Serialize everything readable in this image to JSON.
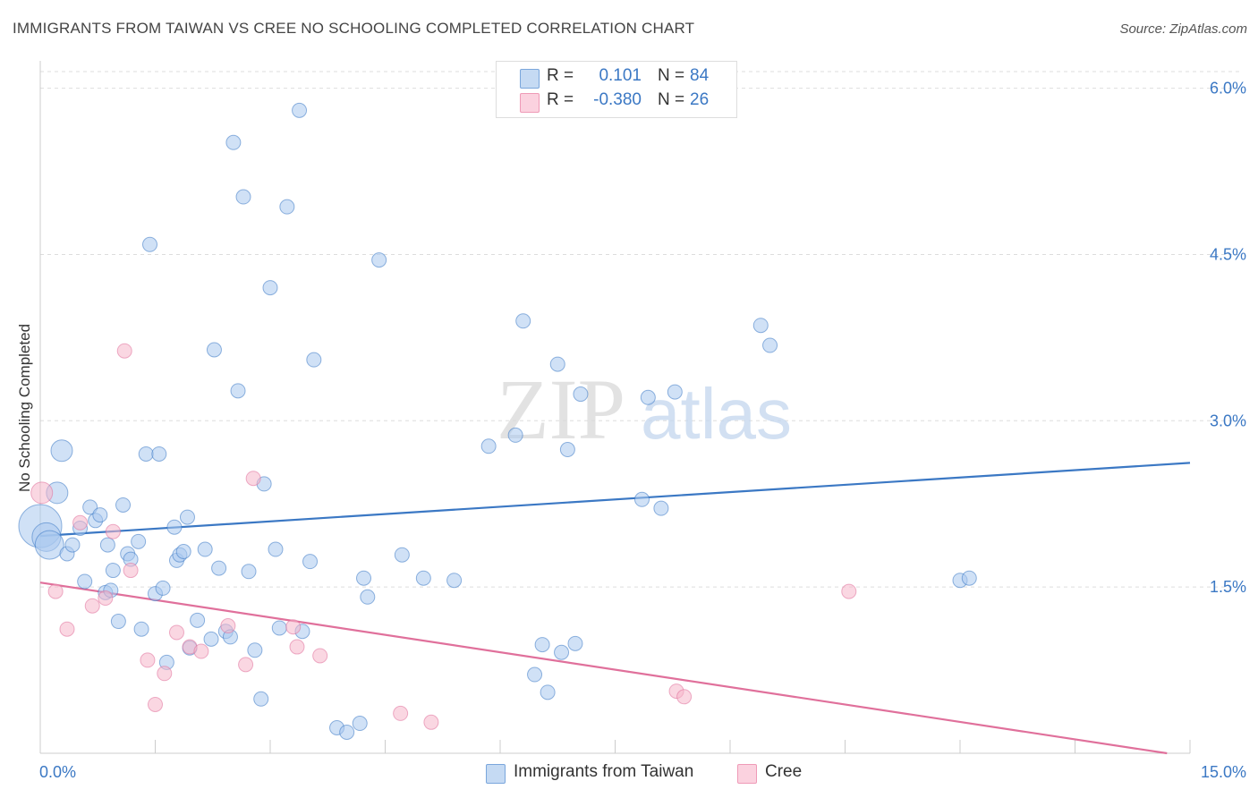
{
  "title": "IMMIGRANTS FROM TAIWAN VS CREE NO SCHOOLING COMPLETED CORRELATION CHART",
  "source": "Source: ZipAtlas.com",
  "watermark": {
    "zip": "ZIP",
    "atlas": "atlas"
  },
  "colors": {
    "blue": "#3b78c4",
    "blue_fill": "#a9c8ee",
    "pink": "#e0709b",
    "pink_fill": "#f6b6cb",
    "grid": "#dddddd"
  },
  "legend_top": {
    "rows": [
      {
        "r_label": "R =",
        "r_value": "0.101",
        "n_label": "N =",
        "n_value": "84"
      },
      {
        "r_label": "R =",
        "r_value": "-0.380",
        "n_label": "N =",
        "n_value": "26"
      }
    ]
  },
  "legend_bottom": {
    "items": [
      "Immigrants from Taiwan",
      "Cree"
    ]
  },
  "chart_data": {
    "type": "scatter",
    "title": "IMMIGRANTS FROM TAIWAN VS CREE NO SCHOOLING COMPLETED CORRELATION CHART",
    "xlabel": "",
    "ylabel": "No Schooling Completed",
    "xlim": [
      0,
      15
    ],
    "ylim": [
      0,
      6.15
    ],
    "x_tick_labels": [
      "0.0%",
      "15.0%"
    ],
    "y_ticks": [
      1.5,
      3.0,
      4.5,
      6.0
    ],
    "y_tick_labels": [
      "1.5%",
      "3.0%",
      "4.5%",
      "6.0%"
    ],
    "grid": true,
    "series": [
      {
        "name": "Immigrants from Taiwan",
        "color": "#3b78c4",
        "fill": "#a9c8ee",
        "trend": {
          "x": [
            0,
            15
          ],
          "y": [
            1.96,
            2.62
          ]
        },
        "points": [
          [
            0.0,
            2.05,
            3
          ],
          [
            0.08,
            1.95,
            2
          ],
          [
            0.12,
            1.88,
            2
          ],
          [
            0.22,
            2.35,
            1.5
          ],
          [
            0.28,
            2.73,
            1.5
          ],
          [
            0.35,
            1.8,
            1
          ],
          [
            0.42,
            1.88,
            1
          ],
          [
            0.52,
            2.03,
            1
          ],
          [
            0.58,
            1.55,
            1
          ],
          [
            0.65,
            2.22,
            1
          ],
          [
            0.72,
            2.1,
            1
          ],
          [
            0.78,
            2.15,
            1
          ],
          [
            0.85,
            1.45,
            1
          ],
          [
            0.88,
            1.88,
            1
          ],
          [
            0.92,
            1.47,
            1
          ],
          [
            0.95,
            1.65,
            1
          ],
          [
            1.02,
            1.19,
            1
          ],
          [
            1.08,
            2.24,
            1
          ],
          [
            1.14,
            1.8,
            1
          ],
          [
            1.18,
            1.75,
            1
          ],
          [
            1.28,
            1.91,
            1
          ],
          [
            1.32,
            1.12,
            1
          ],
          [
            1.38,
            2.7,
            1
          ],
          [
            1.43,
            4.59,
            1
          ],
          [
            1.5,
            1.44,
            1
          ],
          [
            1.55,
            2.7,
            1
          ],
          [
            1.6,
            1.49,
            1
          ],
          [
            1.65,
            0.82,
            1
          ],
          [
            1.75,
            2.04,
            1
          ],
          [
            1.78,
            1.74,
            1
          ],
          [
            1.82,
            1.79,
            1
          ],
          [
            1.87,
            1.82,
            1
          ],
          [
            1.92,
            2.13,
            1
          ],
          [
            1.95,
            0.95,
            1
          ],
          [
            2.05,
            1.2,
            1
          ],
          [
            2.15,
            1.84,
            1
          ],
          [
            2.23,
            1.03,
            1
          ],
          [
            2.27,
            3.64,
            1
          ],
          [
            2.33,
            1.67,
            1
          ],
          [
            2.42,
            1.1,
            1
          ],
          [
            2.48,
            1.05,
            1
          ],
          [
            2.52,
            5.51,
            1
          ],
          [
            2.58,
            3.27,
            1
          ],
          [
            2.65,
            5.02,
            1
          ],
          [
            2.72,
            1.64,
            1
          ],
          [
            2.8,
            0.93,
            1
          ],
          [
            2.88,
            0.49,
            1
          ],
          [
            2.92,
            2.43,
            1
          ],
          [
            3.0,
            4.2,
            1
          ],
          [
            3.07,
            1.84,
            1
          ],
          [
            3.12,
            1.13,
            1
          ],
          [
            3.22,
            4.93,
            1
          ],
          [
            3.38,
            5.8,
            1
          ],
          [
            3.42,
            1.1,
            1
          ],
          [
            3.52,
            1.73,
            1
          ],
          [
            3.57,
            3.55,
            1
          ],
          [
            3.87,
            0.23,
            1
          ],
          [
            4.0,
            0.19,
            1
          ],
          [
            4.17,
            0.27,
            1
          ],
          [
            4.22,
            1.58,
            1
          ],
          [
            4.27,
            1.41,
            1
          ],
          [
            4.42,
            4.45,
            1
          ],
          [
            4.72,
            1.79,
            1
          ],
          [
            5.0,
            1.58,
            1
          ],
          [
            5.4,
            1.56,
            1
          ],
          [
            5.85,
            2.77,
            1
          ],
          [
            6.2,
            2.87,
            1
          ],
          [
            6.3,
            3.9,
            1
          ],
          [
            6.45,
            0.71,
            1
          ],
          [
            6.55,
            0.98,
            1
          ],
          [
            6.62,
            0.55,
            1
          ],
          [
            6.75,
            3.51,
            1
          ],
          [
            6.8,
            0.91,
            1
          ],
          [
            6.88,
            2.74,
            1
          ],
          [
            6.98,
            0.99,
            1
          ],
          [
            7.05,
            3.24,
            1
          ],
          [
            7.85,
            2.29,
            1
          ],
          [
            7.93,
            3.21,
            1
          ],
          [
            8.1,
            2.21,
            1
          ],
          [
            8.28,
            3.26,
            1
          ],
          [
            9.4,
            3.86,
            1
          ],
          [
            9.52,
            3.68,
            1
          ],
          [
            12.0,
            1.56,
            1
          ],
          [
            12.12,
            1.58,
            1
          ]
        ]
      },
      {
        "name": "Cree",
        "color": "#e0709b",
        "fill": "#f6b6cb",
        "trend": {
          "x": [
            0,
            14.7
          ],
          "y": [
            1.54,
            0.0
          ]
        },
        "points": [
          [
            0.02,
            2.35,
            1.5
          ],
          [
            0.2,
            1.46,
            1
          ],
          [
            0.35,
            1.12,
            1
          ],
          [
            0.52,
            2.08,
            1
          ],
          [
            0.68,
            1.33,
            1
          ],
          [
            0.85,
            1.4,
            1
          ],
          [
            0.95,
            2.0,
            1
          ],
          [
            1.1,
            3.63,
            1
          ],
          [
            1.18,
            1.65,
            1
          ],
          [
            1.4,
            0.84,
            1
          ],
          [
            1.5,
            0.44,
            1
          ],
          [
            1.62,
            0.72,
            1
          ],
          [
            1.78,
            1.09,
            1
          ],
          [
            1.95,
            0.96,
            1
          ],
          [
            2.1,
            0.92,
            1
          ],
          [
            2.45,
            1.15,
            1
          ],
          [
            2.68,
            0.8,
            1
          ],
          [
            2.78,
            2.48,
            1
          ],
          [
            3.3,
            1.14,
            1
          ],
          [
            3.35,
            0.96,
            1
          ],
          [
            3.65,
            0.88,
            1
          ],
          [
            4.7,
            0.36,
            1
          ],
          [
            5.1,
            0.28,
            1
          ],
          [
            8.3,
            0.56,
            1
          ],
          [
            8.4,
            0.51,
            1
          ],
          [
            10.55,
            1.46,
            1
          ]
        ]
      }
    ]
  }
}
